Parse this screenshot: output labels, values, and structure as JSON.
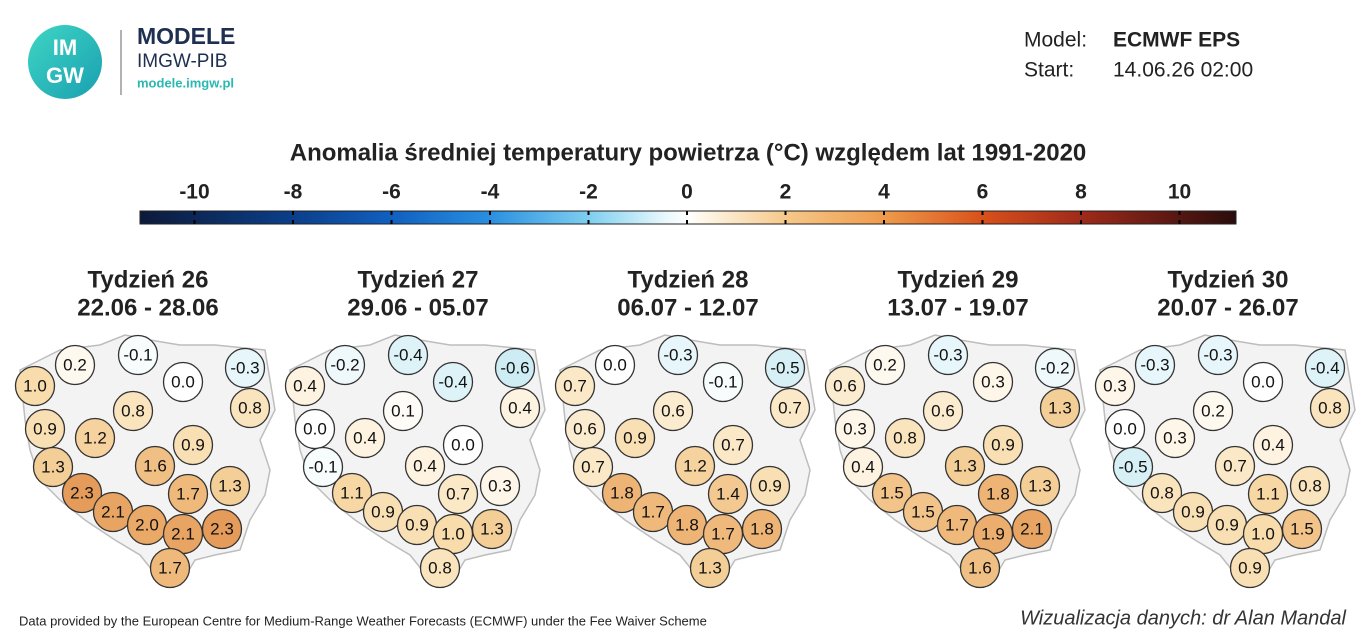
{
  "header": {
    "logo_top": "IM",
    "logo_bottom": "GW",
    "brand": "MODELE",
    "org": "IMGW-PIB",
    "url": "modele.imgw.pl",
    "model_label": "Model:",
    "model": "ECMWF EPS",
    "start_label": "Start:",
    "start": "14.06.26 02:00"
  },
  "title": "Anomalia średniej temperatury powietrza (°C) względem lat 1991-2020",
  "colorbar": {
    "ticks": [
      "-10",
      "-8",
      "-6",
      "-4",
      "-2",
      "0",
      "2",
      "4",
      "6",
      "8",
      "10"
    ]
  },
  "weeks": [
    {
      "title": "Tydzień 26",
      "dates": "22.06 - 28.06",
      "values": [
        "0.2",
        "-0.1",
        "0.0",
        "-0.3",
        "1.0",
        "0.8",
        "0.8",
        "0.9",
        "1.2",
        "0.9",
        "1.3",
        "1.6",
        "1.7",
        "1.3",
        "2.3",
        "2.1",
        "2.0",
        "2.1",
        "2.3",
        "1.7"
      ]
    },
    {
      "title": "Tydzień 27",
      "dates": "29.06 - 05.07",
      "values": [
        "-0.2",
        "-0.4",
        "-0.4",
        "-0.6",
        "0.4",
        "0.1",
        "0.4",
        "0.0",
        "0.4",
        "0.0",
        "-0.1",
        "0.4",
        "0.7",
        "0.3",
        "1.1",
        "0.9",
        "0.9",
        "1.0",
        "1.3",
        "0.8"
      ]
    },
    {
      "title": "Tydzień 28",
      "dates": "06.07 - 12.07",
      "values": [
        "0.0",
        "-0.3",
        "-0.1",
        "-0.5",
        "0.7",
        "0.6",
        "0.7",
        "0.6",
        "0.9",
        "0.7",
        "0.7",
        "1.2",
        "1.4",
        "0.9",
        "1.8",
        "1.7",
        "1.8",
        "1.7",
        "1.8",
        "1.3"
      ]
    },
    {
      "title": "Tydzień 29",
      "dates": "13.07 - 19.07",
      "values": [
        "0.2",
        "-0.3",
        "0.3",
        "-0.2",
        "0.6",
        "0.6",
        "1.3",
        "0.3",
        "0.8",
        "0.9",
        "0.4",
        "1.3",
        "1.8",
        "1.3",
        "1.5",
        "1.5",
        "1.7",
        "1.9",
        "2.1",
        "1.6"
      ]
    },
    {
      "title": "Tydzień 30",
      "dates": "20.07 - 26.07",
      "values": [
        "-0.3",
        "-0.3",
        "0.0",
        "-0.4",
        "0.3",
        "0.2",
        "0.8",
        "0.0",
        "0.3",
        "0.4",
        "-0.5",
        "0.7",
        "1.1",
        "0.8",
        "0.8",
        "0.9",
        "0.9",
        "1.0",
        "1.5",
        "0.9"
      ]
    }
  ],
  "footer": {
    "source": "Data provided by the European Centre for Medium-Range Weather Forecasts (ECMWF) under the Fee Waiver Scheme",
    "credit": "Wizualizacja danych: dr Alan Mandal"
  }
}
